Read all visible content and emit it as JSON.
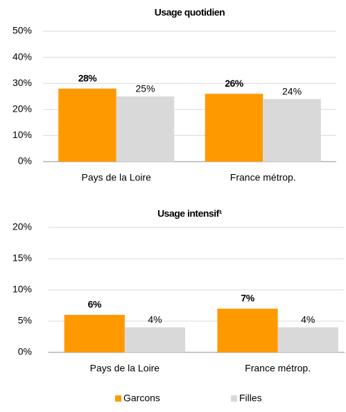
{
  "chart_data": [
    {
      "type": "bar",
      "title": "Usage quotidien",
      "categories": [
        "Pays de la Loire",
        "France métrop."
      ],
      "series": [
        {
          "name": "Garcons",
          "color": "#ff9900",
          "values": [
            28,
            26
          ],
          "value_labels": [
            "28%",
            "26%"
          ]
        },
        {
          "name": "Filles",
          "color": "#d9d9d9",
          "values": [
            25,
            24
          ],
          "value_labels": [
            "25%",
            "24%"
          ]
        }
      ],
      "ylim": [
        0,
        50
      ],
      "yticks": [
        {
          "value": 0,
          "label": "0%"
        },
        {
          "value": 10,
          "label": "10%"
        },
        {
          "value": 20,
          "label": "20%"
        },
        {
          "value": 30,
          "label": "30%"
        },
        {
          "value": 40,
          "label": "40%"
        },
        {
          "value": 50,
          "label": "50%"
        }
      ],
      "grid": true,
      "legend": "bottom"
    },
    {
      "type": "bar",
      "title": "Usage intensif¹",
      "categories": [
        "Pays de la Loire",
        "France métrop."
      ],
      "series": [
        {
          "color": "#ff9900",
          "values": [
            6,
            7
          ],
          "value_labels": [
            "6%",
            "7%"
          ]
        },
        {
          "color": "#d9d9d9",
          "values": [
            4,
            4
          ],
          "value_labels": [
            "4%",
            "4%"
          ]
        }
      ],
      "ylim": [
        0,
        20
      ],
      "yticks": [
        {
          "value": 0,
          "label": "0%"
        },
        {
          "value": 5,
          "label": "5%"
        },
        {
          "value": 10,
          "label": "10%"
        },
        {
          "value": 15,
          "label": "15%"
        },
        {
          "value": 20,
          "label": "20%"
        }
      ],
      "grid": true
    }
  ]
}
